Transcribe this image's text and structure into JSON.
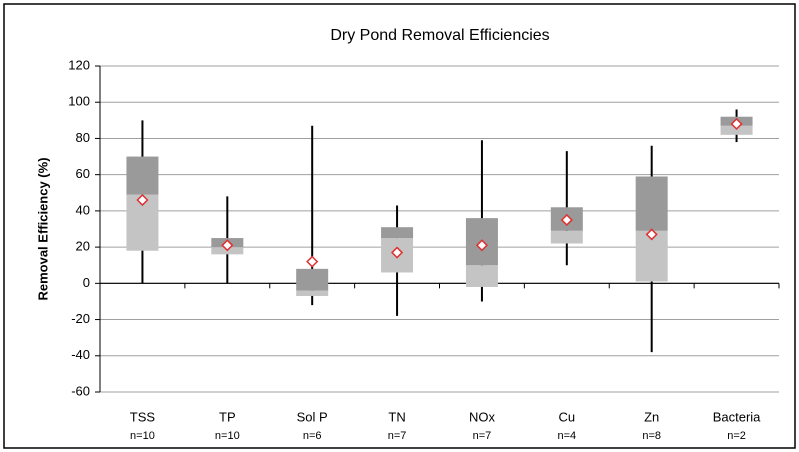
{
  "chart_data": {
    "type": "box",
    "title": "Dry Pond Removal Efficiencies",
    "y_label": "Removal Efficiency (%)",
    "categories": [
      "TSS",
      "TP",
      "Sol P",
      "TN",
      "NOx",
      "Cu",
      "Zn",
      "Bacteria"
    ],
    "sample_sizes": [
      "n=10",
      "n=10",
      "n=6",
      "n=7",
      "n=7",
      "n=4",
      "n=8",
      "n=2"
    ],
    "boxes": [
      {
        "min": 0,
        "q1": 18,
        "median": 49,
        "q3": 70,
        "max": 90,
        "mean": 46
      },
      {
        "min": 0,
        "q1": 16,
        "median": 20,
        "q3": 25,
        "max": 48,
        "mean": 21
      },
      {
        "min": -12,
        "q1": -7,
        "median": -4,
        "q3": 8,
        "max": 87,
        "mean": 12
      },
      {
        "min": -18,
        "q1": 6,
        "median": 25,
        "q3": 31,
        "max": 43,
        "mean": 17
      },
      {
        "min": -10,
        "q1": -2,
        "median": 10,
        "q3": 36,
        "max": 79,
        "mean": 21
      },
      {
        "min": 10,
        "q1": 22,
        "median": 29,
        "q3": 42,
        "max": 73,
        "mean": 35
      },
      {
        "min": -38,
        "q1": 1,
        "median": 29,
        "q3": 59,
        "max": 76,
        "mean": 27
      },
      {
        "min": 78,
        "q1": 82,
        "median": 87,
        "q3": 92,
        "max": 96,
        "mean": 88
      }
    ],
    "upper_color": "#9a9a9a",
    "lower_color": "#c4c4c4",
    "mean_color": "#e03030",
    "ylim": [
      -60,
      120
    ],
    "yticks": [
      -60,
      -40,
      -20,
      0,
      20,
      40,
      60,
      80,
      100,
      120
    ],
    "grid": true
  }
}
